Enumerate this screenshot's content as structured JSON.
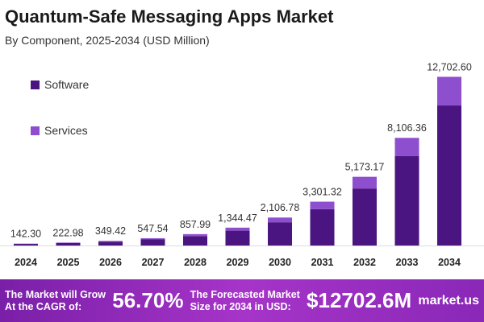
{
  "chart_data": {
    "type": "bar",
    "stacked": true,
    "title": "Quantum-Safe Messaging Apps Market",
    "subtitle": "By Component, 2025-2034 (USD Million)",
    "categories": [
      "2024",
      "2025",
      "2026",
      "2027",
      "2028",
      "2029",
      "2030",
      "2031",
      "2032",
      "2033",
      "2034"
    ],
    "totals_labels": [
      "142.30",
      "222.98",
      "349.42",
      "547.54",
      "857.99",
      "1,344.47",
      "2,106.78",
      "3,301.32",
      "5,173.17",
      "8,106.36",
      "12,702.60"
    ],
    "series": [
      {
        "name": "Software",
        "color": "#4a1580",
        "values": [
          118.1,
          185.1,
          290.0,
          454.5,
          712.1,
          1115.9,
          1748.6,
          2740.1,
          4293.7,
          6728.3,
          10543.2
        ]
      },
      {
        "name": "Services",
        "color": "#8e4fcf",
        "values": [
          24.2,
          37.9,
          59.4,
          93.0,
          145.9,
          228.6,
          358.2,
          561.2,
          879.5,
          1378.1,
          2159.4
        ]
      }
    ],
    "ylim": [
      0,
      14000
    ],
    "legend": "top-left",
    "grid": false
  },
  "banner": {
    "cagr_text_line1": "The Market will Grow",
    "cagr_text_line2": "At the CAGR of:",
    "cagr_value": "56.70%",
    "forecast_line1": "The Forecasted Market",
    "forecast_line2": "Size for 2034 in USD:",
    "forecast_value": "$12702.6M",
    "logo": "market.us"
  }
}
